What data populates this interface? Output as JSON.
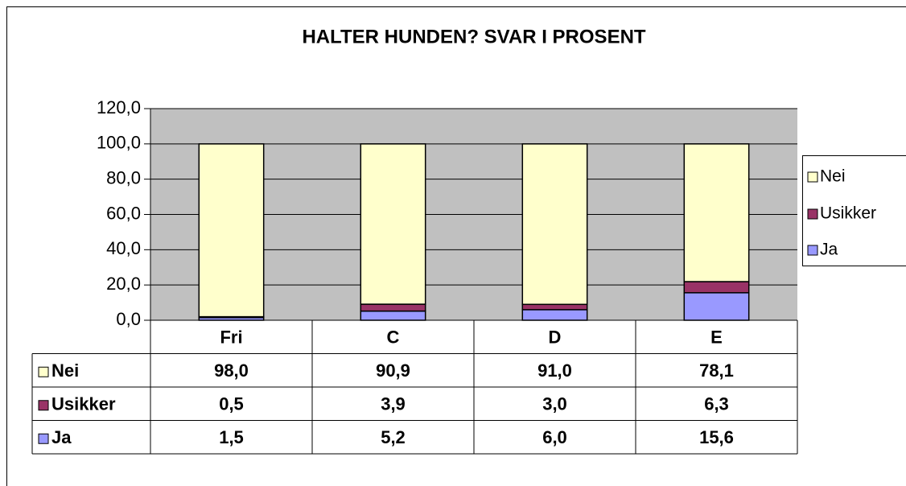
{
  "chart_data": {
    "type": "stacked-bar",
    "title": "HALTER HUNDEN? SVAR I PROSENT",
    "categories": [
      "Fri",
      "C",
      "D",
      "E"
    ],
    "series": [
      {
        "name": "Nei",
        "color": "#FFFFCC",
        "values": [
          98.0,
          90.9,
          91.0,
          78.1
        ],
        "value_labels": [
          "98,0",
          "90,9",
          "91,0",
          "78,1"
        ]
      },
      {
        "name": "Usikker",
        "color": "#993366",
        "values": [
          0.5,
          3.9,
          3.0,
          6.3
        ],
        "value_labels": [
          "0,5",
          "3,9",
          "3,0",
          "6,3"
        ]
      },
      {
        "name": "Ja",
        "color": "#9999FF",
        "values": [
          1.5,
          5.2,
          6.0,
          15.6
        ],
        "value_labels": [
          "1,5",
          "5,2",
          "6,0",
          "15,6"
        ]
      }
    ],
    "ylim": [
      0,
      120
    ],
    "yticks": [
      {
        "value": 0,
        "label": "0,0"
      },
      {
        "value": 20,
        "label": "20,0"
      },
      {
        "value": 40,
        "label": "40,0"
      },
      {
        "value": 60,
        "label": "60,0"
      },
      {
        "value": 80,
        "label": "80,0"
      },
      {
        "value": 100,
        "label": "100,0"
      },
      {
        "value": 120,
        "label": "120,0"
      }
    ],
    "grid": true,
    "plot_background": "#C0C0C0",
    "legend": "right"
  }
}
